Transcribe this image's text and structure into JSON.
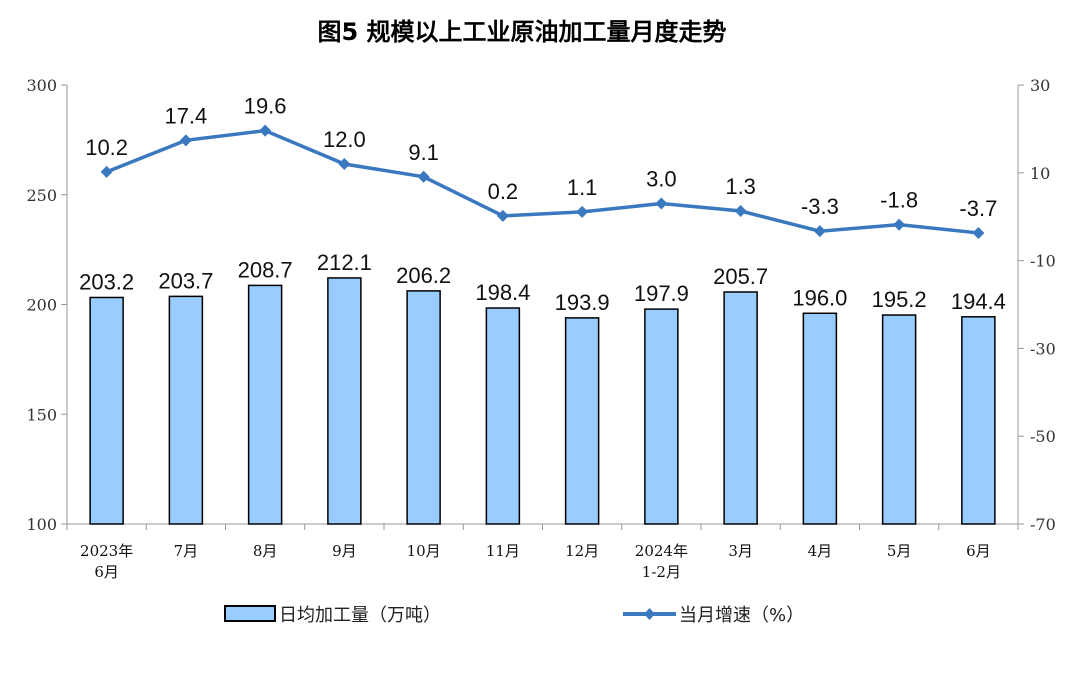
{
  "chart_data": {
    "type": "bar+line",
    "title": "图5  规模以上工业原油加工量月度走势",
    "categories": [
      [
        "2023年",
        "6月"
      ],
      [
        "7月"
      ],
      [
        "8月"
      ],
      [
        "9月"
      ],
      [
        "10月"
      ],
      [
        "11月"
      ],
      [
        "12月"
      ],
      [
        "2024年",
        "1-2月"
      ],
      [
        "3月"
      ],
      [
        "4月"
      ],
      [
        "5月"
      ],
      [
        "6月"
      ]
    ],
    "series": [
      {
        "name": "日均加工量（万吨）",
        "type": "bar",
        "axis": "left",
        "color": "#99CCFF",
        "values": [
          203.2,
          203.7,
          208.7,
          212.1,
          206.2,
          198.4,
          193.9,
          197.9,
          205.7,
          196.0,
          195.2,
          194.4
        ]
      },
      {
        "name": "当月增速（%）",
        "type": "line",
        "axis": "right",
        "color": "#3A78C0",
        "values": [
          10.2,
          17.4,
          19.6,
          12.0,
          9.1,
          0.2,
          1.1,
          3.0,
          1.3,
          -3.3,
          -1.8,
          -3.7
        ]
      }
    ],
    "left_axis": {
      "ylim": [
        100,
        300
      ],
      "ticks": [
        100,
        150,
        200,
        250,
        300
      ]
    },
    "right_axis": {
      "ylim": [
        -70,
        30
      ],
      "ticks": [
        -70,
        -50,
        -30,
        -10,
        10,
        30
      ]
    },
    "grid": false,
    "legend_position": "bottom"
  }
}
